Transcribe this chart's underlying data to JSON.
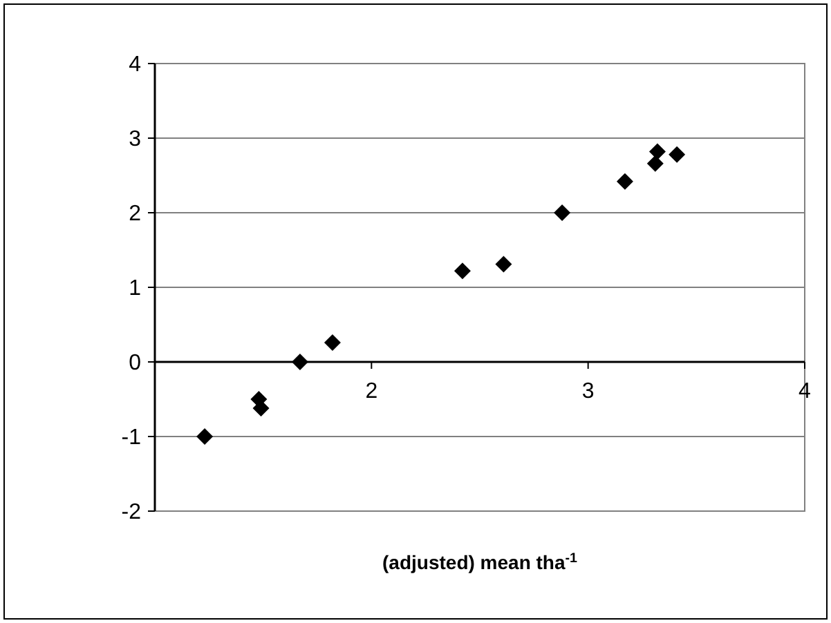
{
  "chart_data": {
    "type": "scatter",
    "xlabel": "(adjusted) mean tha$^{-1}$",
    "x": [
      1.23,
      1.48,
      1.49,
      1.67,
      1.82,
      2.42,
      2.61,
      2.88,
      3.17,
      3.31,
      3.32,
      3.41
    ],
    "series": [
      {
        "color": "#000000",
        "values": [
          -1,
          -0.5,
          -0.62,
          0,
          0.26,
          1.22,
          1.31,
          2.0,
          2.42,
          2.66,
          2.82,
          2.78
        ]
      }
    ],
    "xlim": [
      1,
      4
    ],
    "xticks": [
      {
        "value": 1,
        "label": null
      },
      2,
      3,
      4
    ],
    "ylim": [
      -2,
      4
    ],
    "yticks": [
      -2,
      -1,
      0,
      1,
      2,
      3,
      4
    ],
    "grid": "y",
    "marker": "diamond"
  }
}
